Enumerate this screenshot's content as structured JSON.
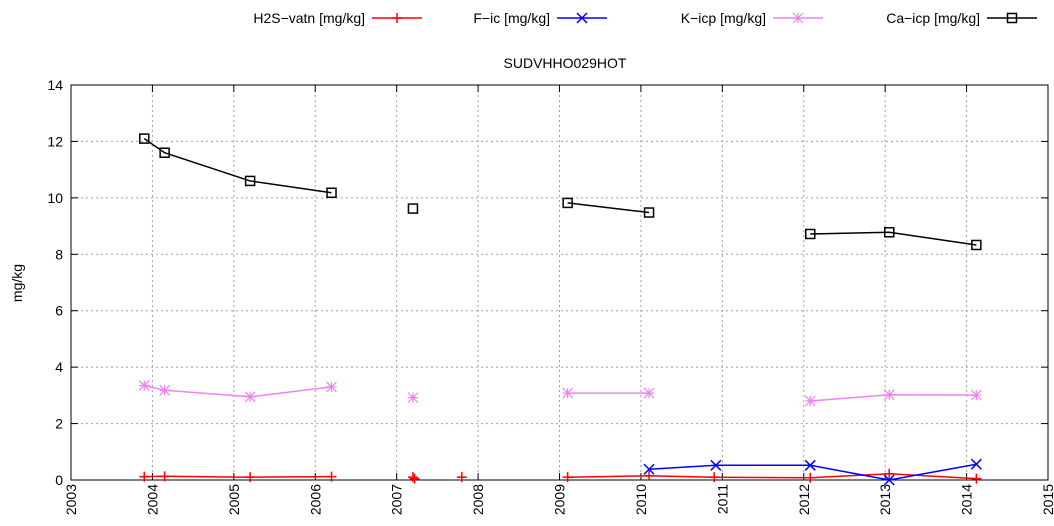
{
  "chart_data": {
    "type": "line",
    "title": "SUDVHHO029HOT",
    "ylabel": "mg/kg",
    "xlabel": "",
    "xlim": [
      2003,
      2015
    ],
    "ylim": [
      0,
      14
    ],
    "x_ticks": [
      "2003",
      "2004",
      "2005",
      "2006",
      "2007",
      "2008",
      "2009",
      "2010",
      "2011",
      "2012",
      "2013",
      "2014",
      "2015"
    ],
    "y_ticks": [
      "0",
      "2",
      "4",
      "6",
      "8",
      "10",
      "12",
      "14"
    ],
    "grid": true,
    "legend_position": "top",
    "series": [
      {
        "name": "H2S−vatn [mg/kg]",
        "color": "#ff0000",
        "marker": "plus",
        "segments": [
          [
            [
              2003.9,
              0.12
            ],
            [
              2004.15,
              0.13
            ],
            [
              2005.2,
              0.1
            ],
            [
              2006.2,
              0.12
            ]
          ],
          [
            [
              2007.2,
              0.1
            ]
          ],
          [
            [
              2007.22,
              0.05
            ]
          ],
          [
            [
              2007.8,
              0.1
            ]
          ],
          [
            [
              2009.1,
              0.1
            ],
            [
              2010.1,
              0.15
            ],
            [
              2010.9,
              0.1
            ],
            [
              2012.08,
              0.08
            ],
            [
              2013.05,
              0.22
            ],
            [
              2014.12,
              0.05
            ]
          ]
        ]
      },
      {
        "name": "F−ic [mg/kg]",
        "color": "#0000ff",
        "marker": "x",
        "segments": [
          [
            [
              2010.1,
              0.38
            ],
            [
              2010.92,
              0.52
            ],
            [
              2012.08,
              0.52
            ],
            [
              2013.05,
              0.0
            ],
            [
              2014.12,
              0.56
            ]
          ]
        ]
      },
      {
        "name": "K−icp [mg/kg]",
        "color": "#ee82ee",
        "marker": "star",
        "segments": [
          [
            [
              2003.9,
              3.35
            ],
            [
              2004.15,
              3.18
            ],
            [
              2005.2,
              2.95
            ],
            [
              2006.2,
              3.3
            ]
          ],
          [
            [
              2007.2,
              2.92
            ]
          ],
          [
            [
              2009.1,
              3.08
            ],
            [
              2010.1,
              3.08
            ]
          ],
          [
            [
              2012.08,
              2.8
            ],
            [
              2013.05,
              3.02
            ],
            [
              2014.12,
              3.01
            ]
          ]
        ]
      },
      {
        "name": "Ca−icp [mg/kg]",
        "color": "#000000",
        "marker": "square",
        "segments": [
          [
            [
              2003.9,
              12.1
            ],
            [
              2004.15,
              11.6
            ],
            [
              2005.2,
              10.6
            ],
            [
              2006.2,
              10.18
            ]
          ],
          [
            [
              2007.2,
              9.62
            ]
          ],
          [
            [
              2009.1,
              9.82
            ],
            [
              2010.1,
              9.48
            ]
          ],
          [
            [
              2012.08,
              8.72
            ],
            [
              2013.05,
              8.78
            ],
            [
              2014.12,
              8.33
            ]
          ]
        ]
      }
    ]
  }
}
